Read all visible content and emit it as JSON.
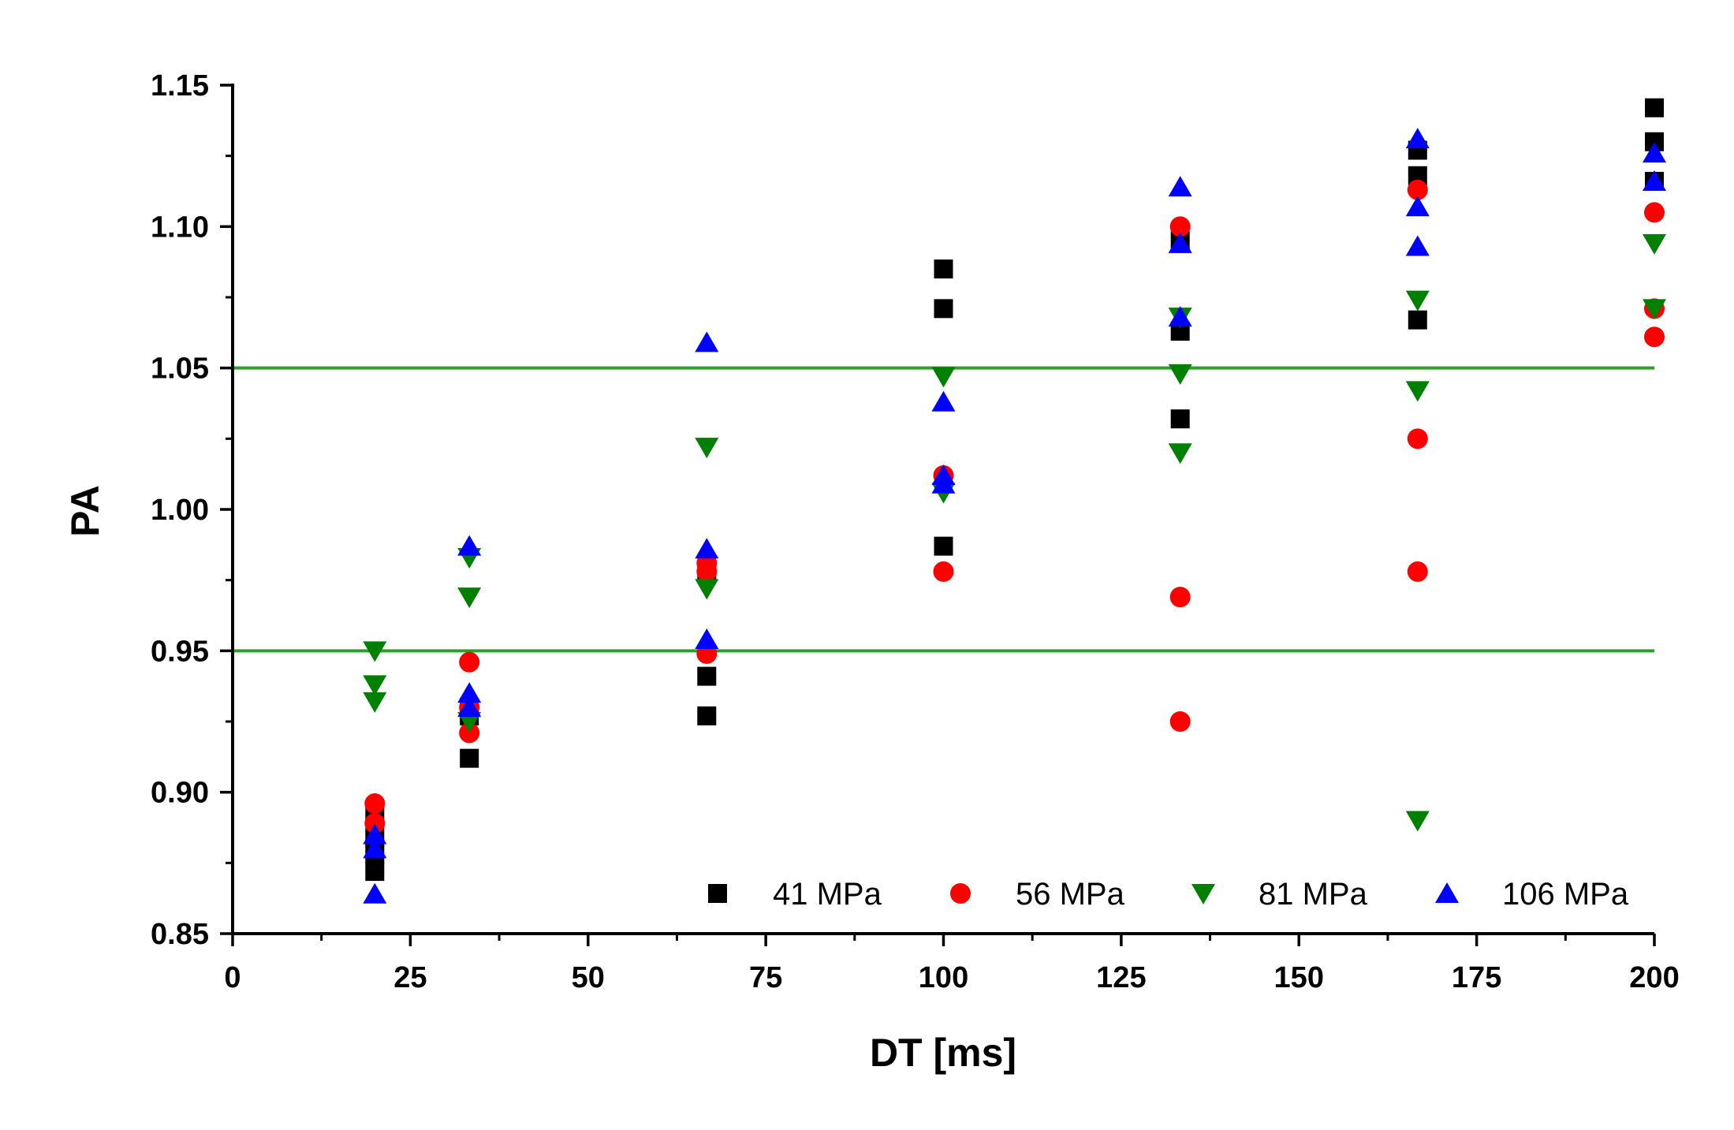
{
  "chart_data": {
    "type": "scatter",
    "title": "",
    "xlabel": "DT [ms]",
    "ylabel": "PA",
    "xlim": [
      0,
      200
    ],
    "ylim": [
      0.85,
      1.15
    ],
    "x_ticks": [
      "0",
      "25",
      "50",
      "75",
      "100",
      "125",
      "150",
      "175",
      "200"
    ],
    "y_ticks": [
      "0.85",
      "0.90",
      "0.95",
      "1.00",
      "1.05",
      "1.10",
      "1.15"
    ],
    "grid": false,
    "legend_position": "bottom-right",
    "reference_lines": [
      {
        "y": 0.95,
        "color": "#2ca02c"
      },
      {
        "y": 1.05,
        "color": "#2ca02c"
      }
    ],
    "series": [
      {
        "name": "41 MPa",
        "marker": "square",
        "color": "#000000",
        "points": [
          [
            20,
            0.872
          ],
          [
            20,
            0.878
          ],
          [
            20,
            0.884
          ],
          [
            20,
            0.893
          ],
          [
            33.3,
            0.912
          ],
          [
            33.3,
            0.927
          ],
          [
            33.3,
            0.93
          ],
          [
            66.7,
            0.927
          ],
          [
            66.7,
            0.941
          ],
          [
            66.7,
            0.978
          ],
          [
            100,
            0.987
          ],
          [
            100,
            1.071
          ],
          [
            100,
            1.085
          ],
          [
            133.3,
            1.032
          ],
          [
            133.3,
            1.063
          ],
          [
            133.3,
            1.095
          ],
          [
            166.7,
            1.067
          ],
          [
            166.7,
            1.118
          ],
          [
            166.7,
            1.127
          ],
          [
            200,
            1.116
          ],
          [
            200,
            1.13
          ],
          [
            200,
            1.142
          ]
        ]
      },
      {
        "name": "56 MPa",
        "marker": "circle",
        "color": "#ff0000",
        "points": [
          [
            20,
            0.889
          ],
          [
            20,
            0.896
          ],
          [
            33.3,
            0.921
          ],
          [
            33.3,
            0.93
          ],
          [
            33.3,
            0.946
          ],
          [
            66.7,
            0.949
          ],
          [
            66.7,
            0.978
          ],
          [
            66.7,
            0.981
          ],
          [
            100,
            0.978
          ],
          [
            100,
            1.012
          ],
          [
            133.3,
            0.925
          ],
          [
            133.3,
            0.969
          ],
          [
            133.3,
            1.1
          ],
          [
            166.7,
            0.978
          ],
          [
            166.7,
            1.025
          ],
          [
            166.7,
            1.113
          ],
          [
            200,
            1.061
          ],
          [
            200,
            1.071
          ],
          [
            200,
            1.105
          ]
        ]
      },
      {
        "name": "81 MPa",
        "marker": "triangle-down",
        "color": "#008000",
        "points": [
          [
            20,
            0.932
          ],
          [
            20,
            0.938
          ],
          [
            20,
            0.95
          ],
          [
            33.3,
            0.925
          ],
          [
            33.3,
            0.969
          ],
          [
            33.3,
            0.983
          ],
          [
            66.7,
            0.972
          ],
          [
            66.7,
            1.022
          ],
          [
            100,
            1.006
          ],
          [
            100,
            1.047
          ],
          [
            133.3,
            1.02
          ],
          [
            133.3,
            1.048
          ],
          [
            133.3,
            1.068
          ],
          [
            166.7,
            0.89
          ],
          [
            166.7,
            1.042
          ],
          [
            166.7,
            1.074
          ],
          [
            200,
            1.071
          ],
          [
            200,
            1.094
          ]
        ]
      },
      {
        "name": "106 MPa",
        "marker": "triangle-up",
        "color": "#0000ff",
        "points": [
          [
            20,
            0.864
          ],
          [
            20,
            0.88
          ],
          [
            20,
            0.885
          ],
          [
            33.3,
            0.93
          ],
          [
            33.3,
            0.935
          ],
          [
            33.3,
            0.987
          ],
          [
            66.7,
            0.954
          ],
          [
            66.7,
            0.986
          ],
          [
            66.7,
            1.059
          ],
          [
            100,
            1.009
          ],
          [
            100,
            1.012
          ],
          [
            100,
            1.038
          ],
          [
            133.3,
            1.068
          ],
          [
            133.3,
            1.094
          ],
          [
            133.3,
            1.114
          ],
          [
            166.7,
            1.093
          ],
          [
            166.7,
            1.107
          ],
          [
            166.7,
            1.131
          ],
          [
            200,
            1.116
          ],
          [
            200,
            1.126
          ]
        ]
      }
    ]
  }
}
